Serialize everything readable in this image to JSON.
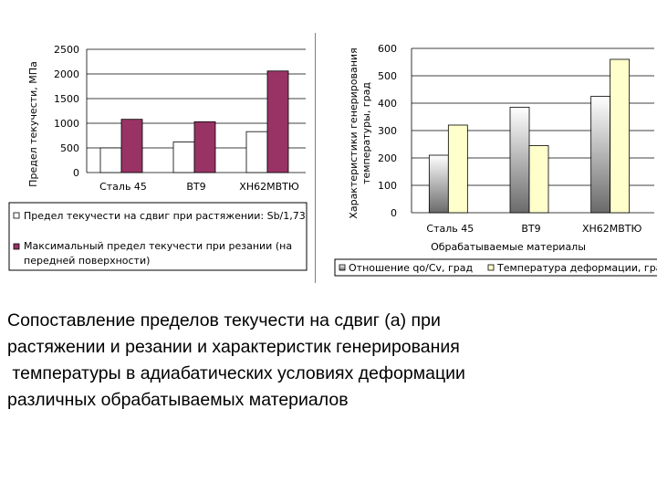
{
  "chart_data": [
    {
      "type": "bar",
      "categories": [
        "Сталь 45",
        "ВТ9",
        "ХН62МВТЮ"
      ],
      "series": [
        {
          "name": "Предел текучести на сдвиг при растяжении: Sb/1,73",
          "values": [
            500,
            620,
            830
          ],
          "color": "#ffffff"
        },
        {
          "name": "Максимальный предел текучести при резании (на передней поверхности)",
          "values": [
            1080,
            1030,
            2060
          ],
          "color": "#993366"
        }
      ],
      "ylabel": "Предел текучести, МПа",
      "ylim": [
        0,
        2500
      ],
      "yticks": [
        0,
        500,
        1000,
        1500,
        2000,
        2500
      ],
      "grid": true,
      "legend": "bottom"
    },
    {
      "type": "bar",
      "categories": [
        "Сталь 45",
        "ВТ9",
        "ХН62МВТЮ"
      ],
      "series": [
        {
          "name": "Отношение qo/Cv, град",
          "values": [
            210,
            385,
            425
          ],
          "color": "gradient-gray"
        },
        {
          "name": "Температура деформации, град",
          "values": [
            320,
            245,
            560
          ],
          "color": "#ffffcc"
        }
      ],
      "xlabel": "Обрабатываемые материалы",
      "ylabel": "Характеристики генерирования температуры, град",
      "ylim": [
        0,
        600
      ],
      "yticks": [
        0,
        100,
        200,
        300,
        400,
        500,
        600
      ],
      "grid": true,
      "legend": "bottom"
    }
  ],
  "caption": {
    "line1": "Сопоставление пределов текучести на сдвиг (а) при",
    "line2": "растяжении и резании и характеристик генерирования",
    "line3": " температуры в адиабатических условиях деформации",
    "line4": "различных обрабатываемых материалов"
  }
}
